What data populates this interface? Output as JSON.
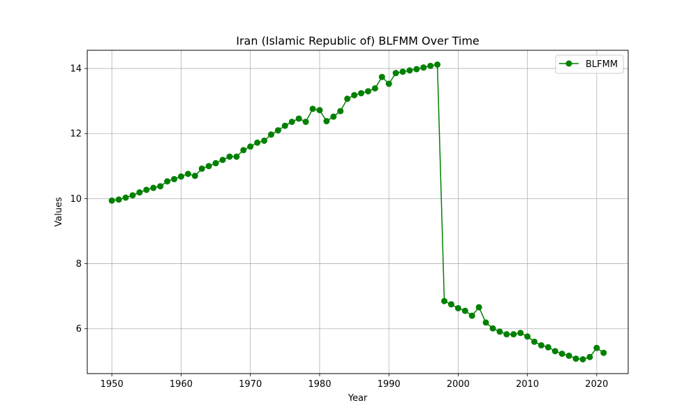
{
  "chart_data": {
    "type": "line",
    "title": "Iran (Islamic Republic of) BLFMM Over Time",
    "xlabel": "Year",
    "ylabel": "Values",
    "xlim": [
      1946.45,
      2024.55
    ],
    "ylim": [
      4.62,
      14.56
    ],
    "xticks": [
      1950,
      1960,
      1970,
      1980,
      1990,
      2000,
      2010,
      2020
    ],
    "yticks": [
      6,
      8,
      10,
      12,
      14
    ],
    "grid": true,
    "legend_position": "top-right",
    "colors": {
      "series": "#008000",
      "grid": "#b0b0b0",
      "axis": "#000000"
    },
    "series": [
      {
        "name": "BLFMM",
        "x": [
          1950,
          1951,
          1952,
          1953,
          1954,
          1955,
          1956,
          1957,
          1958,
          1959,
          1960,
          1961,
          1962,
          1963,
          1964,
          1965,
          1966,
          1967,
          1968,
          1969,
          1970,
          1971,
          1972,
          1973,
          1974,
          1975,
          1976,
          1977,
          1978,
          1979,
          1980,
          1981,
          1982,
          1983,
          1984,
          1985,
          1986,
          1987,
          1988,
          1989,
          1990,
          1991,
          1992,
          1993,
          1994,
          1995,
          1996,
          1997,
          1998,
          1999,
          2000,
          2001,
          2002,
          2003,
          2004,
          2005,
          2006,
          2007,
          2008,
          2009,
          2010,
          2011,
          2012,
          2013,
          2014,
          2015,
          2016,
          2017,
          2018,
          2019,
          2020,
          2021
        ],
        "values": [
          9.94,
          9.97,
          10.03,
          10.1,
          10.19,
          10.27,
          10.33,
          10.38,
          10.53,
          10.6,
          10.68,
          10.76,
          10.7,
          10.92,
          11.0,
          11.09,
          11.19,
          11.29,
          11.29,
          11.49,
          11.6,
          11.72,
          11.78,
          11.97,
          12.1,
          12.24,
          12.36,
          12.46,
          12.36,
          12.76,
          12.72,
          12.38,
          12.52,
          12.69,
          13.07,
          13.18,
          13.24,
          13.3,
          13.39,
          13.74,
          13.53,
          13.86,
          13.9,
          13.94,
          13.98,
          14.03,
          14.08,
          14.12,
          6.85,
          6.75,
          6.63,
          6.55,
          6.4,
          6.66,
          6.19,
          6.01,
          5.91,
          5.83,
          5.83,
          5.87,
          5.76,
          5.6,
          5.49,
          5.43,
          5.31,
          5.23,
          5.17,
          5.08,
          5.06,
          5.13,
          5.41,
          5.26
        ]
      }
    ]
  }
}
